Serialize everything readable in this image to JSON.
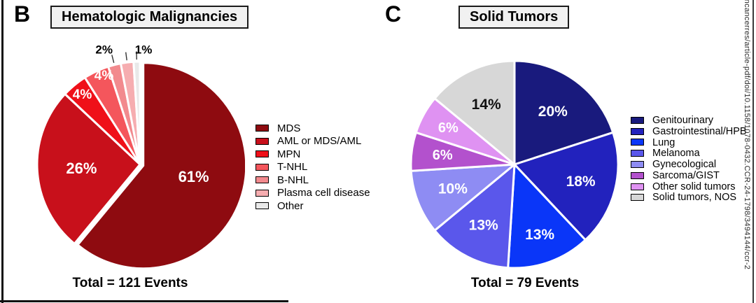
{
  "watermark": {
    "text": "incancerres/article-pdf/doi/10.1158/1078-0432.CCR-24-1798/3494144/ccr-2"
  },
  "chart_data": [
    {
      "type": "pie",
      "panel_letter": "B",
      "title": "Hematologic Malignancies",
      "total_label": "Total = 121 Events",
      "unit": "%",
      "direction": "clockwise",
      "start_angle_deg": 0,
      "legend_position": "right",
      "categories": [
        "MDS",
        "AML or MDS/AML",
        "MPN",
        "T-NHL",
        "B-NHL",
        "Plasma cell disease",
        "Other"
      ],
      "values": [
        61,
        26,
        4,
        4,
        2,
        2,
        1
      ],
      "colors": [
        "#8E0B10",
        "#C8101B",
        "#EF1019",
        "#F4565C",
        "#F28A8E",
        "#F6ADB0",
        "#E9E9E9"
      ],
      "inside_labels": [
        "61%",
        "26%",
        "4%",
        "4%",
        "",
        "",
        ""
      ],
      "inside_label_colors": [
        "#FFFFFF",
        "#FFFFFF",
        "#FFFFFF",
        "#FFFFFF",
        "",
        "",
        ""
      ],
      "outside_labels": [
        {
          "text": "2%",
          "slice_indexes": [
            4,
            5
          ]
        },
        {
          "text": "1%",
          "slice_indexes": [
            6
          ]
        }
      ],
      "outside_label_color": "#000000"
    },
    {
      "type": "pie",
      "panel_letter": "C",
      "title": "Solid Tumors",
      "total_label": "Total = 79 Events",
      "unit": "%",
      "direction": "clockwise",
      "start_angle_deg": 0,
      "legend_position": "right",
      "categories": [
        "Genitourinary",
        "Gastrointestinal/HPB",
        "Lung",
        "Melanoma",
        "Gynecological",
        "Sarcoma/GIST",
        "Other solid tumors",
        "Solid tumors, NOS"
      ],
      "values": [
        20,
        18,
        13,
        13,
        10,
        6,
        6,
        14
      ],
      "colors": [
        "#191A7D",
        "#2222BD",
        "#0A36F8",
        "#5A57EB",
        "#8E8CF3",
        "#B351CD",
        "#DF92F2",
        "#D7D7D7"
      ],
      "inside_labels": [
        "20%",
        "18%",
        "13%",
        "13%",
        "10%",
        "6%",
        "6%",
        "14%"
      ],
      "inside_label_colors": [
        "#FFFFFF",
        "#FFFFFF",
        "#FFFFFF",
        "#FFFFFF",
        "#FFFFFF",
        "#FFFFFF",
        "#FFFFFF",
        "#111111"
      ],
      "outside_labels": [],
      "outside_label_color": "#000000"
    }
  ]
}
